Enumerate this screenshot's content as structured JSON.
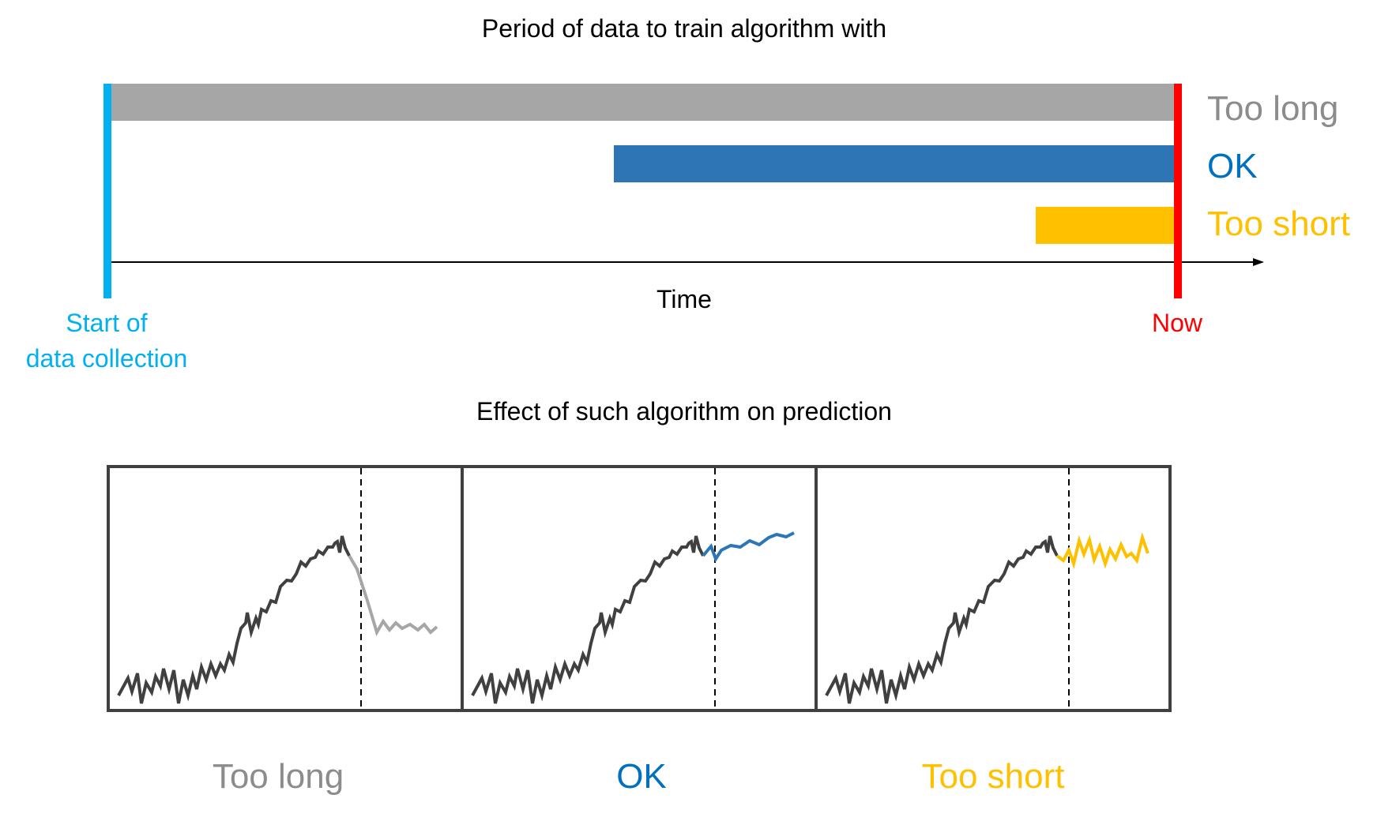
{
  "top": {
    "title": "Period of data to train algorithm with",
    "axis_label": "Time",
    "start_label_line1": "Start of",
    "start_label_line2": "data collection",
    "now_label": "Now",
    "bars": [
      {
        "label": "Too long",
        "color": "#A6A6A6"
      },
      {
        "label": "OK",
        "color": "#2E75B6"
      },
      {
        "label": "Too short",
        "color": "#FFC000"
      }
    ],
    "start_color": "#00B0F0",
    "now_color": "#FF0000"
  },
  "bottom": {
    "title": "Effect of such algorithm on prediction",
    "panels": [
      {
        "label": "Too long",
        "color": "#A6A6A6"
      },
      {
        "label": "OK",
        "color": "#2E75B6"
      },
      {
        "label": "Too short",
        "color": "#FFC000"
      }
    ],
    "history_color": "#404040"
  }
}
